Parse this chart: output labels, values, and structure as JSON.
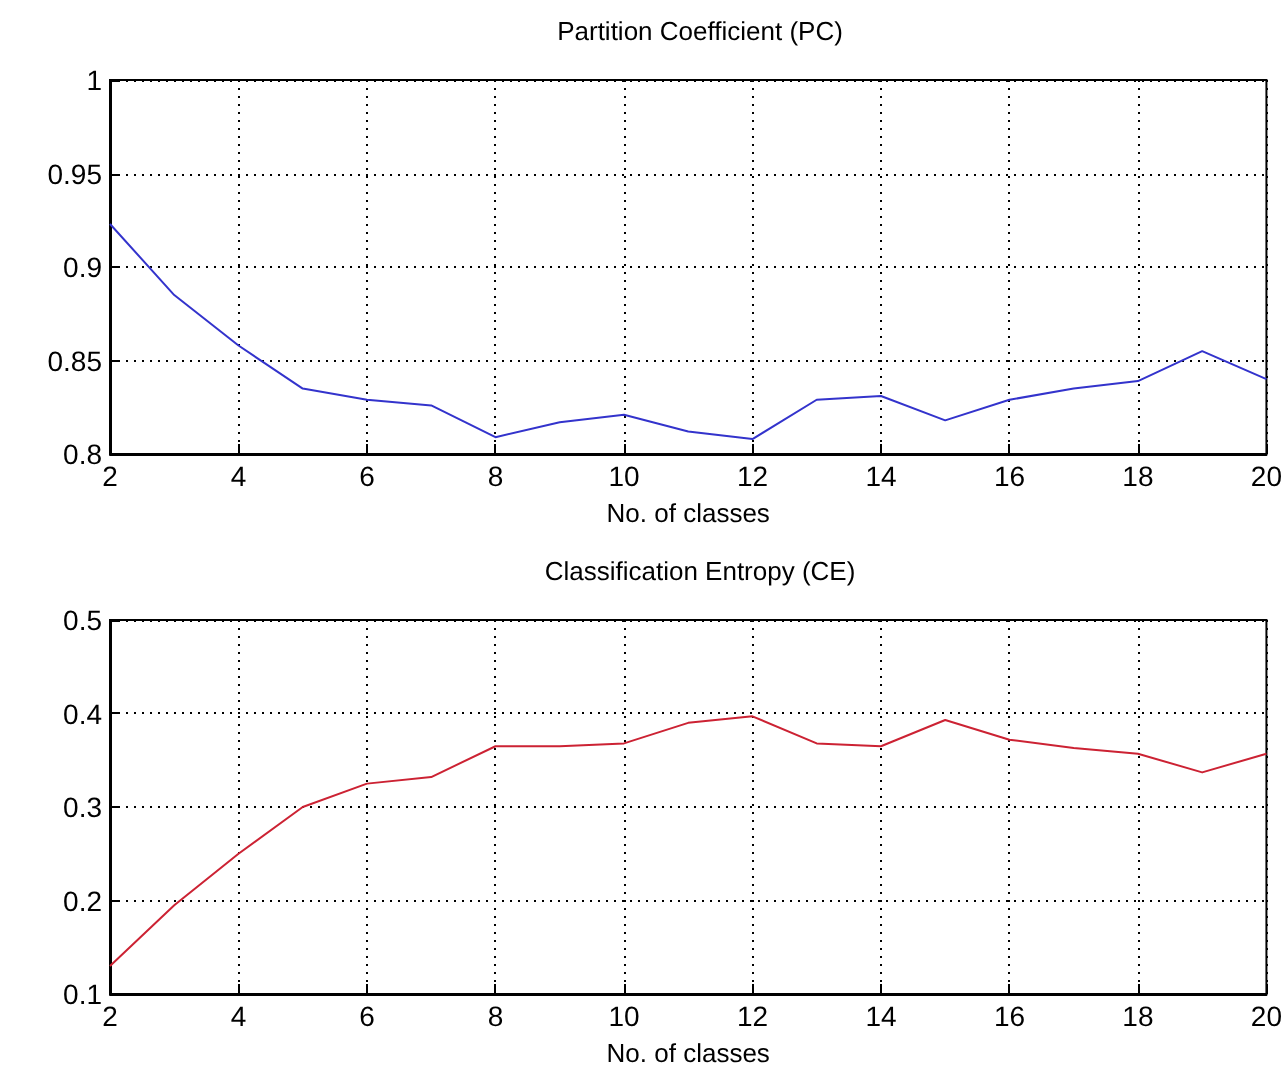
{
  "chart_data": [
    {
      "type": "line",
      "title": "Partition Coefficient (PC)",
      "xlabel": "No. of classes",
      "x": [
        2,
        3,
        4,
        5,
        6,
        7,
        8,
        9,
        10,
        11,
        12,
        13,
        14,
        15,
        16,
        17,
        18,
        19,
        20
      ],
      "series": [
        {
          "color": "#3333cc",
          "values": [
            0.923,
            0.885,
            0.858,
            0.835,
            0.829,
            0.826,
            0.809,
            0.817,
            0.821,
            0.812,
            0.808,
            0.829,
            0.831,
            0.818,
            0.829,
            0.835,
            0.839,
            0.855,
            0.84
          ]
        }
      ],
      "xlim": [
        2,
        20
      ],
      "xticks": [
        2,
        4,
        6,
        8,
        10,
        12,
        14,
        16,
        18,
        20
      ],
      "ylim": [
        0.8,
        1
      ],
      "yticks": [
        0.8,
        0.85,
        0.9,
        0.95,
        1
      ],
      "grid": true,
      "marker": "none",
      "line_style": "solid"
    },
    {
      "type": "line",
      "title": "Classification Entropy (CE)",
      "xlabel": "No. of classes",
      "x": [
        2,
        3,
        4,
        5,
        6,
        7,
        8,
        9,
        10,
        11,
        12,
        13,
        14,
        15,
        16,
        17,
        18,
        19,
        20
      ],
      "series": [
        {
          "color": "#cc2233",
          "values": [
            0.13,
            0.195,
            0.25,
            0.3,
            0.325,
            0.332,
            0.365,
            0.365,
            0.368,
            0.39,
            0.397,
            0.368,
            0.365,
            0.393,
            0.372,
            0.363,
            0.357,
            0.337,
            0.357
          ]
        }
      ],
      "xlim": [
        2,
        20
      ],
      "xticks": [
        2,
        4,
        6,
        8,
        10,
        12,
        14,
        16,
        18,
        20
      ],
      "ylim": [
        0.1,
        0.5
      ],
      "yticks": [
        0.1,
        0.2,
        0.3,
        0.4,
        0.5
      ],
      "grid": true,
      "marker": "none",
      "line_style": "solid"
    }
  ]
}
